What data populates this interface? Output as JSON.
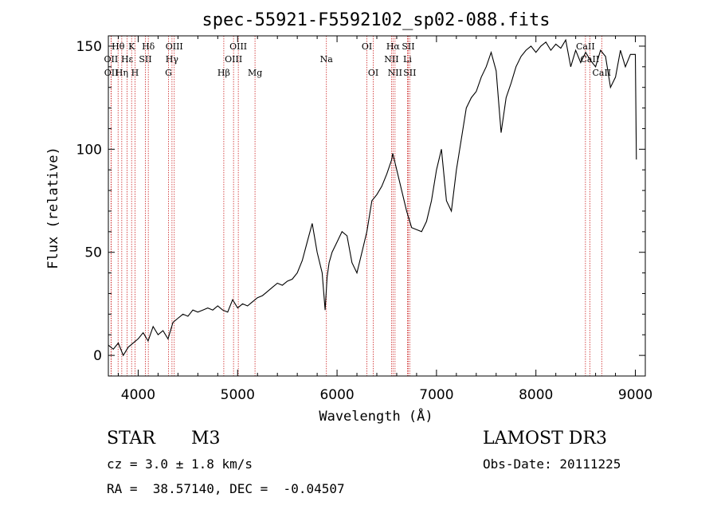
{
  "chart_data": {
    "type": "line",
    "title": "spec-55921-F5592102_sp02-088.fits",
    "xlabel": "Wavelength (Å)",
    "ylabel": "Flux (relative)",
    "xlim": [
      3700,
      9100
    ],
    "ylim": [
      -10,
      155
    ],
    "xticks": [
      4000,
      5000,
      6000,
      7000,
      8000,
      9000
    ],
    "xtick_labels": [
      "4000",
      "5000",
      "6000",
      "7000",
      "8000",
      "9000"
    ],
    "yticks": [
      0,
      50,
      100,
      150
    ],
    "ytick_labels": [
      "0",
      "50",
      "100",
      "150"
    ],
    "series": [
      {
        "name": "flux",
        "x": [
          3700,
          3750,
          3800,
          3850,
          3900,
          3950,
          4000,
          4050,
          4100,
          4150,
          4200,
          4250,
          4300,
          4350,
          4400,
          4450,
          4500,
          4550,
          4600,
          4650,
          4700,
          4750,
          4800,
          4850,
          4900,
          4950,
          5000,
          5050,
          5100,
          5150,
          5200,
          5250,
          5300,
          5350,
          5400,
          5450,
          5500,
          5550,
          5600,
          5650,
          5700,
          5750,
          5800,
          5850,
          5880,
          5900,
          5920,
          5950,
          6000,
          6050,
          6100,
          6150,
          6200,
          6250,
          6300,
          6350,
          6400,
          6450,
          6500,
          6550,
          6560,
          6600,
          6650,
          6700,
          6750,
          6800,
          6850,
          6900,
          6950,
          7000,
          7050,
          7100,
          7150,
          7200,
          7250,
          7300,
          7350,
          7400,
          7450,
          7500,
          7550,
          7600,
          7650,
          7700,
          7750,
          7800,
          7850,
          7900,
          7950,
          8000,
          8050,
          8100,
          8150,
          8200,
          8250,
          8300,
          8350,
          8400,
          8450,
          8500,
          8550,
          8600,
          8650,
          8700,
          8750,
          8800,
          8850,
          8900,
          8950,
          9000,
          9010
        ],
        "y": [
          5,
          3,
          6,
          0,
          4,
          6,
          8,
          11,
          7,
          14,
          10,
          12,
          8,
          16,
          18,
          20,
          19,
          22,
          21,
          22,
          23,
          22,
          24,
          22,
          21,
          27,
          23,
          25,
          24,
          26,
          28,
          29,
          31,
          33,
          35,
          34,
          36,
          37,
          40,
          46,
          55,
          64,
          50,
          40,
          22,
          38,
          45,
          50,
          55,
          60,
          58,
          45,
          40,
          50,
          60,
          75,
          78,
          82,
          88,
          95,
          98,
          90,
          80,
          70,
          62,
          61,
          60,
          65,
          75,
          90,
          100,
          75,
          70,
          90,
          105,
          120,
          125,
          128,
          135,
          140,
          147,
          138,
          108,
          125,
          132,
          140,
          145,
          148,
          150,
          147,
          150,
          152,
          148,
          151,
          149,
          153,
          140,
          148,
          142,
          147,
          143,
          140,
          148,
          145,
          130,
          135,
          148,
          140,
          146,
          146,
          95
        ]
      }
    ],
    "lines": [
      {
        "label": "Hθ",
        "x": 3798,
        "row": 0
      },
      {
        "label": "OII",
        "x": 3727,
        "row": 1
      },
      {
        "label": "OII",
        "x": 3729,
        "row": 2
      },
      {
        "label": "Hη",
        "x": 3835,
        "row": 2
      },
      {
        "label": "Hε",
        "x": 3889,
        "row": 1
      },
      {
        "label": "K",
        "x": 3934,
        "row": 0
      },
      {
        "label": "H",
        "x": 3968,
        "row": 2
      },
      {
        "label": "SII",
        "x": 4072,
        "row": 1
      },
      {
        "label": "Hδ",
        "x": 4102,
        "row": 0
      },
      {
        "label": "OIII",
        "x": 4363,
        "row": 0
      },
      {
        "label": "Hγ",
        "x": 4340,
        "row": 1
      },
      {
        "label": "G",
        "x": 4305,
        "row": 2
      },
      {
        "label": "Hβ",
        "x": 4861,
        "row": 2
      },
      {
        "label": "OIII",
        "x": 4959,
        "row": 1
      },
      {
        "label": "OIII",
        "x": 5007,
        "row": 0
      },
      {
        "label": "Mg",
        "x": 5175,
        "row": 2
      },
      {
        "label": "Na",
        "x": 5893,
        "row": 1
      },
      {
        "label": "OI",
        "x": 6300,
        "row": 0
      },
      {
        "label": "OI",
        "x": 6364,
        "row": 2
      },
      {
        "label": "Hα",
        "x": 6563,
        "row": 0
      },
      {
        "label": "NII",
        "x": 6548,
        "row": 1
      },
      {
        "label": "NII",
        "x": 6583,
        "row": 2
      },
      {
        "label": "SII",
        "x": 6716,
        "row": 0
      },
      {
        "label": "Li",
        "x": 6708,
        "row": 1
      },
      {
        "label": "SII",
        "x": 6731,
        "row": 2
      },
      {
        "label": "CaII",
        "x": 8498,
        "row": 0
      },
      {
        "label": "CaII",
        "x": 8542,
        "row": 1
      },
      {
        "label": "CaII",
        "x": 8662,
        "row": 2
      }
    ]
  },
  "info": {
    "object_class": "STAR",
    "subclass": "M3",
    "cz": "cz = 3.0 ± 1.8 km/s",
    "coords": "RA =  38.57140, DEC =  -0.04507",
    "survey": "LAMOST DR3",
    "obs_date": "Obs-Date: 20111225"
  },
  "colors": {
    "line_marker": "#cc2222",
    "spectrum": "#000000"
  }
}
